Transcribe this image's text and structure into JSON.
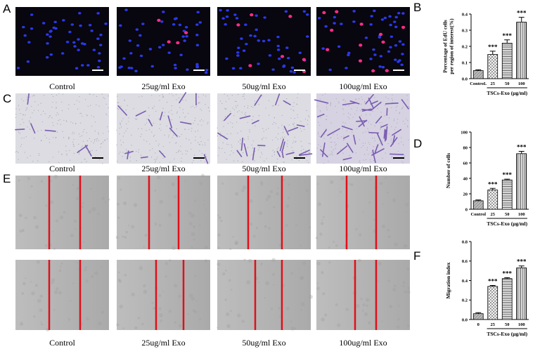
{
  "panels": {
    "A": {
      "label": "A",
      "captions": [
        "Control",
        "25ug/ml Exo",
        "50ug/ml Exo",
        "100ug/ml Exo"
      ]
    },
    "C": {
      "label": "C",
      "captions": [
        "Control",
        "25ug/ml Exo",
        "50ug/ml Exo",
        "100ug/ml Exo"
      ]
    },
    "E": {
      "label": "E",
      "captions": [
        "Control",
        "25ug/ml Exo",
        "50ug/ml Exo",
        "100ug/ml Exo"
      ]
    }
  },
  "chart_data": [
    {
      "type": "bar",
      "panel_label": "B",
      "y_label": [
        "Percentage of EdU cells",
        "per region of interest(%)"
      ],
      "x_label": "TSCs-Exo (μg/ml)",
      "categories": [
        "ControL",
        "25",
        "50",
        "100"
      ],
      "values": [
        0.05,
        0.15,
        0.22,
        0.35
      ],
      "errors": [
        0.005,
        0.02,
        0.02,
        0.03
      ],
      "annotations": [
        null,
        "***",
        "***",
        "***"
      ],
      "ylim": [
        0,
        0.4
      ],
      "yticks": [
        {
          "value": 0,
          "label": "0.0"
        },
        0.1,
        0.2,
        0.3,
        0.4
      ]
    },
    {
      "type": "bar",
      "panel_label": "D",
      "y_label": [
        "Number of cells"
      ],
      "x_label": "TSCs-Exo (μg/ml)",
      "categories": [
        "Control",
        "25",
        "50",
        "100"
      ],
      "values": [
        11,
        25,
        38,
        72
      ],
      "errors": [
        1,
        2,
        1,
        3
      ],
      "annotations": [
        null,
        "***",
        "***",
        "***"
      ],
      "ylim": [
        0,
        100
      ],
      "yticks": [
        0,
        20,
        40,
        60,
        80,
        100
      ]
    },
    {
      "type": "bar",
      "panel_label": "F",
      "y_label": [
        "Migration index"
      ],
      "x_label": "TSCs-Exo (μg/ml)",
      "categories": [
        "0",
        "25",
        "50",
        "100"
      ],
      "values": [
        0.06,
        0.34,
        0.42,
        0.53
      ],
      "errors": [
        0.01,
        0.01,
        0.01,
        0.02
      ],
      "annotations": [
        null,
        "***",
        "***",
        "***"
      ],
      "ylim": [
        0,
        0.8
      ],
      "yticks": [
        {
          "value": 0,
          "label": "0.0"
        },
        0.2,
        0.4,
        0.6,
        0.8
      ]
    }
  ]
}
